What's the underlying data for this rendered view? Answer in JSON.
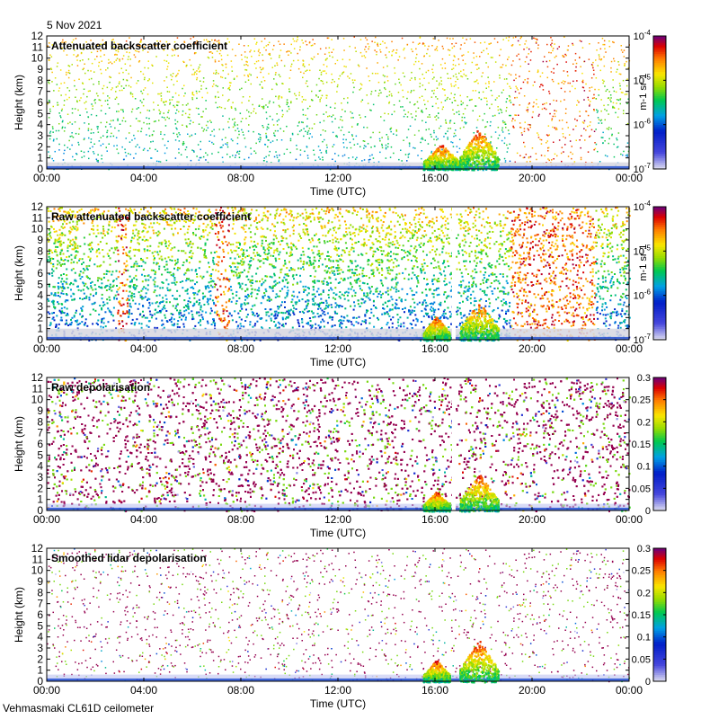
{
  "header": {
    "date": "5 Nov 2021"
  },
  "footer": {
    "instrument": "Vehmasmaki CL61D ceilometer"
  },
  "chart_data": [
    {
      "type": "heatmap",
      "title": "Attenuated backscatter coefficient",
      "xlabel": "Time (UTC)",
      "ylabel": "Height (km)",
      "x_ticks": [
        "00:00",
        "04:00",
        "08:00",
        "12:00",
        "16:00",
        "20:00",
        "00:00"
      ],
      "y_ticks": [
        0,
        1,
        2,
        3,
        4,
        5,
        6,
        7,
        8,
        9,
        10,
        11,
        12
      ],
      "xlim": [
        0,
        24
      ],
      "ylim": [
        0,
        12
      ],
      "colorbar": {
        "scale": "log",
        "ticks": [
          "10-7",
          "10-6",
          "10-5",
          "10-4"
        ],
        "unit": "m-1 sr-1",
        "range": [
          1e-07,
          0.0001
        ]
      },
      "features": [
        {
          "kind": "surface_aerosol_layer",
          "x_range": [
            0,
            24
          ],
          "top_km": 0.7
        },
        {
          "kind": "cloud",
          "x_range": [
            15.5,
            17.0
          ],
          "top_km": 2.3
        },
        {
          "kind": "cloud",
          "x_range": [
            17.0,
            18.6
          ],
          "top_km": 3.8
        },
        {
          "kind": "high_noise_region",
          "x_range": [
            19.1,
            22.6
          ]
        }
      ]
    },
    {
      "type": "heatmap",
      "title": "Raw attenuated backscatter coefficient",
      "xlabel": "Time (UTC)",
      "ylabel": "Height (km)",
      "x_ticks": [
        "00:00",
        "04:00",
        "08:00",
        "12:00",
        "16:00",
        "20:00",
        "00:00"
      ],
      "y_ticks": [
        0,
        1,
        2,
        3,
        4,
        5,
        6,
        7,
        8,
        9,
        10,
        11,
        12
      ],
      "xlim": [
        0,
        24
      ],
      "ylim": [
        0,
        12
      ],
      "colorbar": {
        "scale": "log",
        "ticks": [
          "10-7",
          "10-6",
          "10-5",
          "10-4"
        ],
        "unit": "m-1 sr-1",
        "range": [
          1e-07,
          0.0001
        ]
      },
      "features": [
        {
          "kind": "high_noise_column",
          "x_range": [
            2.9,
            3.3
          ]
        },
        {
          "kind": "high_noise_column",
          "x_range": [
            6.9,
            7.5
          ]
        },
        {
          "kind": "high_noise_region",
          "x_range": [
            19.1,
            22.6
          ]
        },
        {
          "kind": "data_gap",
          "x_range": [
            16.7,
            16.85
          ]
        },
        {
          "kind": "cloud",
          "x_range": [
            15.5,
            16.6
          ],
          "top_km": 2.2
        },
        {
          "kind": "cloud",
          "x_range": [
            17.0,
            18.6
          ],
          "top_km": 3.6
        }
      ]
    },
    {
      "type": "heatmap",
      "title": "Raw depolarisation",
      "xlabel": "Time (UTC)",
      "ylabel": "Height (km)",
      "x_ticks": [
        "00:00",
        "04:00",
        "08:00",
        "12:00",
        "16:00",
        "20:00",
        "00:00"
      ],
      "y_ticks": [
        0,
        1,
        2,
        3,
        4,
        5,
        6,
        7,
        8,
        9,
        10,
        11,
        12
      ],
      "xlim": [
        0,
        24
      ],
      "ylim": [
        0,
        12
      ],
      "colorbar": {
        "scale": "linear",
        "ticks": [
          "0",
          "0.05",
          "0.1",
          "0.15",
          "0.2",
          "0.25",
          "0.3"
        ],
        "range": [
          0,
          0.3
        ]
      },
      "features": [
        {
          "kind": "data_gap",
          "x_range": [
            16.7,
            16.85
          ]
        },
        {
          "kind": "cloud",
          "x_range": [
            15.5,
            16.6
          ],
          "top_km": 1.8
        },
        {
          "kind": "cloud",
          "x_range": [
            17.0,
            18.6
          ],
          "top_km": 3.4
        }
      ]
    },
    {
      "type": "heatmap",
      "title": "Smoothed lidar depolarisation",
      "xlabel": "Time (UTC)",
      "ylabel": "Height (km)",
      "x_ticks": [
        "00:00",
        "04:00",
        "08:00",
        "12:00",
        "16:00",
        "20:00",
        "00:00"
      ],
      "y_ticks": [
        0,
        1,
        2,
        3,
        4,
        5,
        6,
        7,
        8,
        9,
        10,
        11,
        12
      ],
      "xlim": [
        0,
        24
      ],
      "ylim": [
        0,
        12
      ],
      "colorbar": {
        "scale": "linear",
        "ticks": [
          "0",
          "0.05",
          "0.1",
          "0.15",
          "0.2",
          "0.25",
          "0.3"
        ],
        "range": [
          0,
          0.3
        ]
      },
      "features": [
        {
          "kind": "surface_aerosol_layer",
          "x_range": [
            0,
            24
          ],
          "top_km": 0.8
        },
        {
          "kind": "cloud",
          "x_range": [
            15.5,
            16.6
          ],
          "top_km": 2.0
        },
        {
          "kind": "cloud",
          "x_range": [
            17.0,
            18.6
          ],
          "top_km": 3.8
        }
      ]
    }
  ]
}
